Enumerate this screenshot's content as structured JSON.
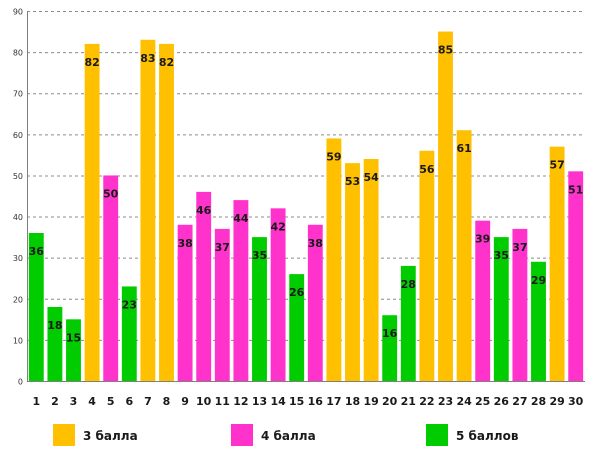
{
  "chart_data": {
    "type": "bar",
    "categories": [
      "1",
      "2",
      "3",
      "4",
      "5",
      "6",
      "7",
      "8",
      "9",
      "10",
      "11",
      "12",
      "13",
      "14",
      "15",
      "16",
      "17",
      "18",
      "19",
      "20",
      "21",
      "22",
      "23",
      "24",
      "25",
      "26",
      "27",
      "28",
      "29",
      "30"
    ],
    "values": [
      36,
      18,
      15,
      82,
      50,
      23,
      83,
      82,
      38,
      46,
      37,
      44,
      35,
      42,
      26,
      38,
      59,
      53,
      54,
      16,
      28,
      56,
      85,
      61,
      39,
      35,
      37,
      29,
      57,
      51
    ],
    "bar_groups": [
      "5 баллов",
      "5 баллов",
      "5 баллов",
      "3 балла",
      "4 балла",
      "5 баллов",
      "3 балла",
      "3 балла",
      "4 балла",
      "4 балла",
      "4 балла",
      "4 балла",
      "5 баллов",
      "4 балла",
      "5 баллов",
      "4 балла",
      "3 балла",
      "3 балла",
      "3 балла",
      "5 баллов",
      "5 баллов",
      "3 балла",
      "3 балла",
      "3 балла",
      "4 балла",
      "5 баллов",
      "4 балла",
      "5 баллов",
      "3 балла",
      "4 балла"
    ],
    "yticks": [
      0,
      10,
      20,
      30,
      40,
      50,
      60,
      70,
      80,
      90
    ],
    "ylim": [
      0,
      90
    ],
    "grid": "horizontal-dashed",
    "legend": {
      "position": "bottom",
      "entries": [
        {
          "name": "3 балла",
          "color": "#FFC000"
        },
        {
          "name": "4 балла",
          "color": "#FF33CC"
        },
        {
          "name": "5 баллов",
          "color": "#00CC00"
        }
      ]
    },
    "title": "",
    "xlabel": "",
    "ylabel": ""
  }
}
